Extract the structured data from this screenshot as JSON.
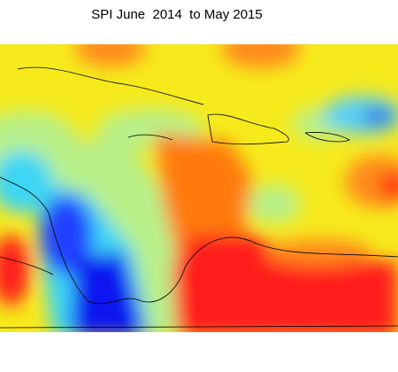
{
  "title": "SPI June  2014  to May 2015"
}
